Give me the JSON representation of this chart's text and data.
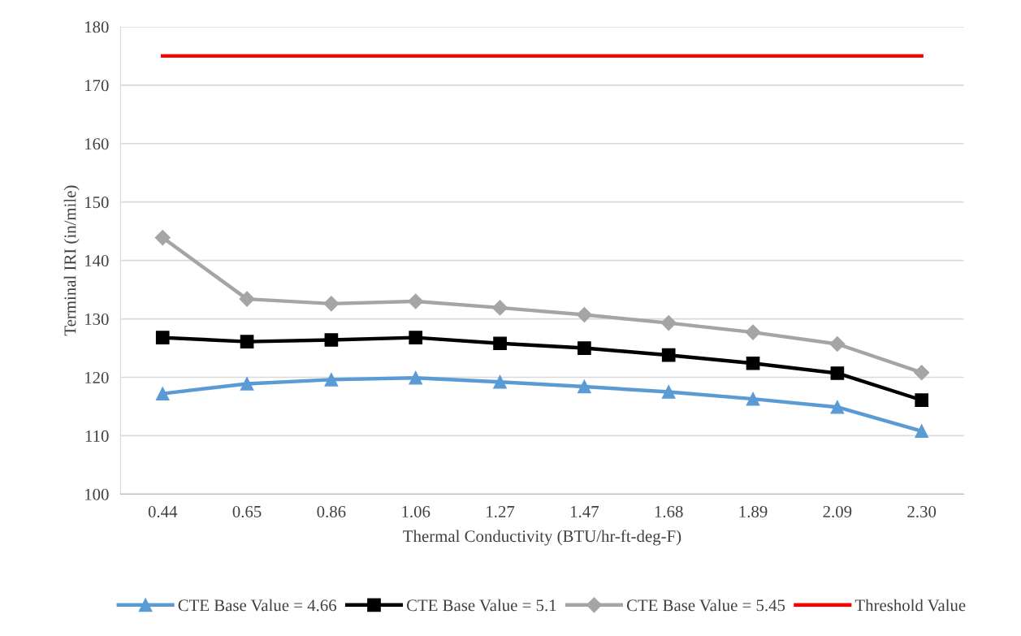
{
  "chart_data": {
    "type": "line",
    "xlabel": "Thermal Conductivity (BTU/hr-ft-deg-F)",
    "ylabel": "Terminal IRI (in/mile)",
    "categories": [
      "0.44",
      "0.65",
      "0.86",
      "1.06",
      "1.27",
      "1.47",
      "1.68",
      "1.89",
      "2.09",
      "2.30"
    ],
    "series": [
      {
        "name": "CTE Base Value = 4.66",
        "color": "#5b9bd5",
        "marker": "triangle",
        "values": [
          117.2,
          118.9,
          119.6,
          119.9,
          119.2,
          118.4,
          117.5,
          116.3,
          114.9,
          110.8
        ]
      },
      {
        "name": "CTE Base Value = 5.1",
        "color": "#000000",
        "marker": "square",
        "values": [
          126.8,
          126.1,
          126.4,
          126.8,
          125.8,
          125.0,
          123.8,
          122.4,
          120.7,
          116.1
        ]
      },
      {
        "name": "CTE Base Value = 5.45",
        "color": "#a5a5a5",
        "marker": "diamond",
        "values": [
          143.9,
          133.4,
          132.6,
          133.0,
          131.9,
          130.7,
          129.3,
          127.7,
          125.7,
          120.8
        ]
      },
      {
        "name": "Threshold Value",
        "color": "#ff0000",
        "marker": "none",
        "values": [
          175,
          175,
          175,
          175,
          175,
          175,
          175,
          175,
          175,
          175
        ]
      }
    ],
    "ylim": [
      100,
      180
    ],
    "yticks": [
      100,
      110,
      120,
      130,
      140,
      150,
      160,
      170,
      180
    ],
    "grid": "y",
    "legend": "bottom",
    "line_style": "solid"
  }
}
